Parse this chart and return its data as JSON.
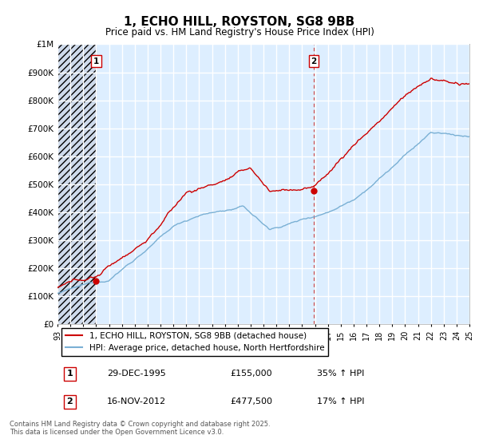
{
  "title": "1, ECHO HILL, ROYSTON, SG8 9BB",
  "subtitle": "Price paid vs. HM Land Registry's House Price Index (HPI)",
  "ylim": [
    0,
    1000000
  ],
  "yticks": [
    0,
    100000,
    200000,
    300000,
    400000,
    500000,
    600000,
    700000,
    800000,
    900000,
    1000000
  ],
  "ytick_labels": [
    "£0",
    "£100K",
    "£200K",
    "£300K",
    "£400K",
    "£500K",
    "£600K",
    "£700K",
    "£800K",
    "£900K",
    "£1M"
  ],
  "x_start_year": 1993,
  "x_end_year": 2025,
  "marker1_year": 1996.0,
  "marker2_year": 2012.9,
  "marker1_price": 155000,
  "marker2_price": 477500,
  "legend_line1": "1, ECHO HILL, ROYSTON, SG8 9BB (detached house)",
  "legend_line2": "HPI: Average price, detached house, North Hertfordshire",
  "footer": "Contains HM Land Registry data © Crown copyright and database right 2025.\nThis data is licensed under the Open Government Licence v3.0.",
  "line_color_red": "#cc0000",
  "line_color_blue": "#7ab0d4",
  "background_color": "#ffffff",
  "plot_bg_color": "#ddeeff",
  "grid_color": "#ffffff",
  "hatch_color": "#c0c8d8"
}
